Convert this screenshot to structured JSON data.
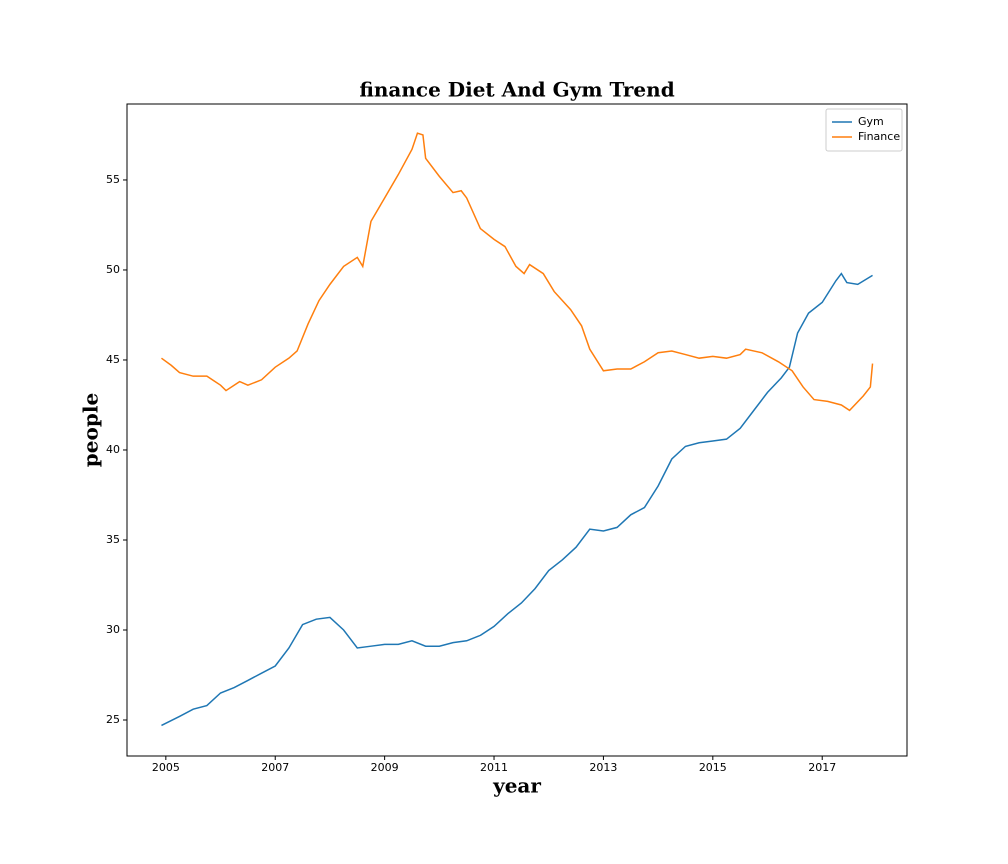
{
  "chart_data": {
    "type": "line",
    "title": "finance Diet And Gym Trend",
    "x_label": "year",
    "y_label": "people",
    "xlim": [
      2004.29,
      2018.55
    ],
    "ylim": [
      23.0,
      59.22
    ],
    "xticks": [
      2005,
      2007,
      2009,
      2011,
      2013,
      2015,
      2017
    ],
    "yticks": [
      25,
      30,
      35,
      40,
      45,
      50,
      55
    ],
    "legend": "upper right",
    "series": [
      {
        "name": "Gym",
        "color": "#1f77b4",
        "x": [
          2004.92,
          2005.25,
          2005.5,
          2005.75,
          2006.0,
          2006.25,
          2006.5,
          2006.75,
          2007.0,
          2007.25,
          2007.5,
          2007.75,
          2008.0,
          2008.25,
          2008.5,
          2008.75,
          2009.0,
          2009.25,
          2009.5,
          2009.75,
          2010.0,
          2010.25,
          2010.5,
          2010.75,
          2011.0,
          2011.25,
          2011.5,
          2011.75,
          2012.0,
          2012.25,
          2012.5,
          2012.75,
          2013.0,
          2013.25,
          2013.5,
          2013.75,
          2014.0,
          2014.25,
          2014.5,
          2014.75,
          2015.0,
          2015.25,
          2015.5,
          2015.75,
          2016.0,
          2016.25,
          2016.4,
          2016.55,
          2016.75,
          2017.0,
          2017.25,
          2017.35,
          2017.45,
          2017.65,
          2017.92
        ],
        "values": [
          24.7,
          25.2,
          25.6,
          25.8,
          26.5,
          26.8,
          27.2,
          27.6,
          28.0,
          29.0,
          30.3,
          30.6,
          30.7,
          30.0,
          29.0,
          29.1,
          29.2,
          29.2,
          29.4,
          29.1,
          29.1,
          29.3,
          29.4,
          29.7,
          30.2,
          30.9,
          31.5,
          32.3,
          33.3,
          33.9,
          34.6,
          35.6,
          35.5,
          35.7,
          36.4,
          36.8,
          38.0,
          39.5,
          40.2,
          40.4,
          40.5,
          40.6,
          41.2,
          42.2,
          43.2,
          44.0,
          44.6,
          46.5,
          47.6,
          48.2,
          49.4,
          49.8,
          49.3,
          49.2,
          49.7
        ]
      },
      {
        "name": "Finance",
        "color": "#ff7f0e",
        "x": [
          2004.92,
          2005.1,
          2005.25,
          2005.5,
          2005.75,
          2006.0,
          2006.1,
          2006.35,
          2006.5,
          2006.75,
          2007.0,
          2007.25,
          2007.4,
          2007.6,
          2007.8,
          2008.0,
          2008.25,
          2008.5,
          2008.6,
          2008.75,
          2009.0,
          2009.25,
          2009.5,
          2009.6,
          2009.7,
          2009.75,
          2010.0,
          2010.25,
          2010.4,
          2010.5,
          2010.75,
          2011.0,
          2011.2,
          2011.4,
          2011.55,
          2011.65,
          2011.9,
          2012.1,
          2012.4,
          2012.6,
          2012.75,
          2013.0,
          2013.25,
          2013.5,
          2013.75,
          2014.0,
          2014.25,
          2014.5,
          2014.75,
          2015.0,
          2015.25,
          2015.5,
          2015.6,
          2015.9,
          2016.2,
          2016.45,
          2016.65,
          2016.85,
          2017.1,
          2017.35,
          2017.5,
          2017.75,
          2017.88,
          2017.92
        ],
        "values": [
          45.1,
          44.7,
          44.3,
          44.1,
          44.1,
          43.6,
          43.3,
          43.8,
          43.6,
          43.9,
          44.6,
          45.1,
          45.5,
          47.0,
          48.3,
          49.2,
          50.2,
          50.7,
          50.2,
          52.7,
          54.0,
          55.3,
          56.7,
          57.6,
          57.5,
          56.2,
          55.2,
          54.3,
          54.4,
          54.0,
          52.3,
          51.7,
          51.3,
          50.2,
          49.8,
          50.3,
          49.8,
          48.8,
          47.8,
          46.9,
          45.6,
          44.4,
          44.5,
          44.5,
          44.9,
          45.4,
          45.5,
          45.3,
          45.1,
          45.2,
          45.1,
          45.3,
          45.6,
          45.4,
          44.9,
          44.4,
          43.5,
          42.8,
          42.7,
          42.5,
          42.2,
          43.0,
          43.5,
          44.8
        ]
      }
    ]
  }
}
